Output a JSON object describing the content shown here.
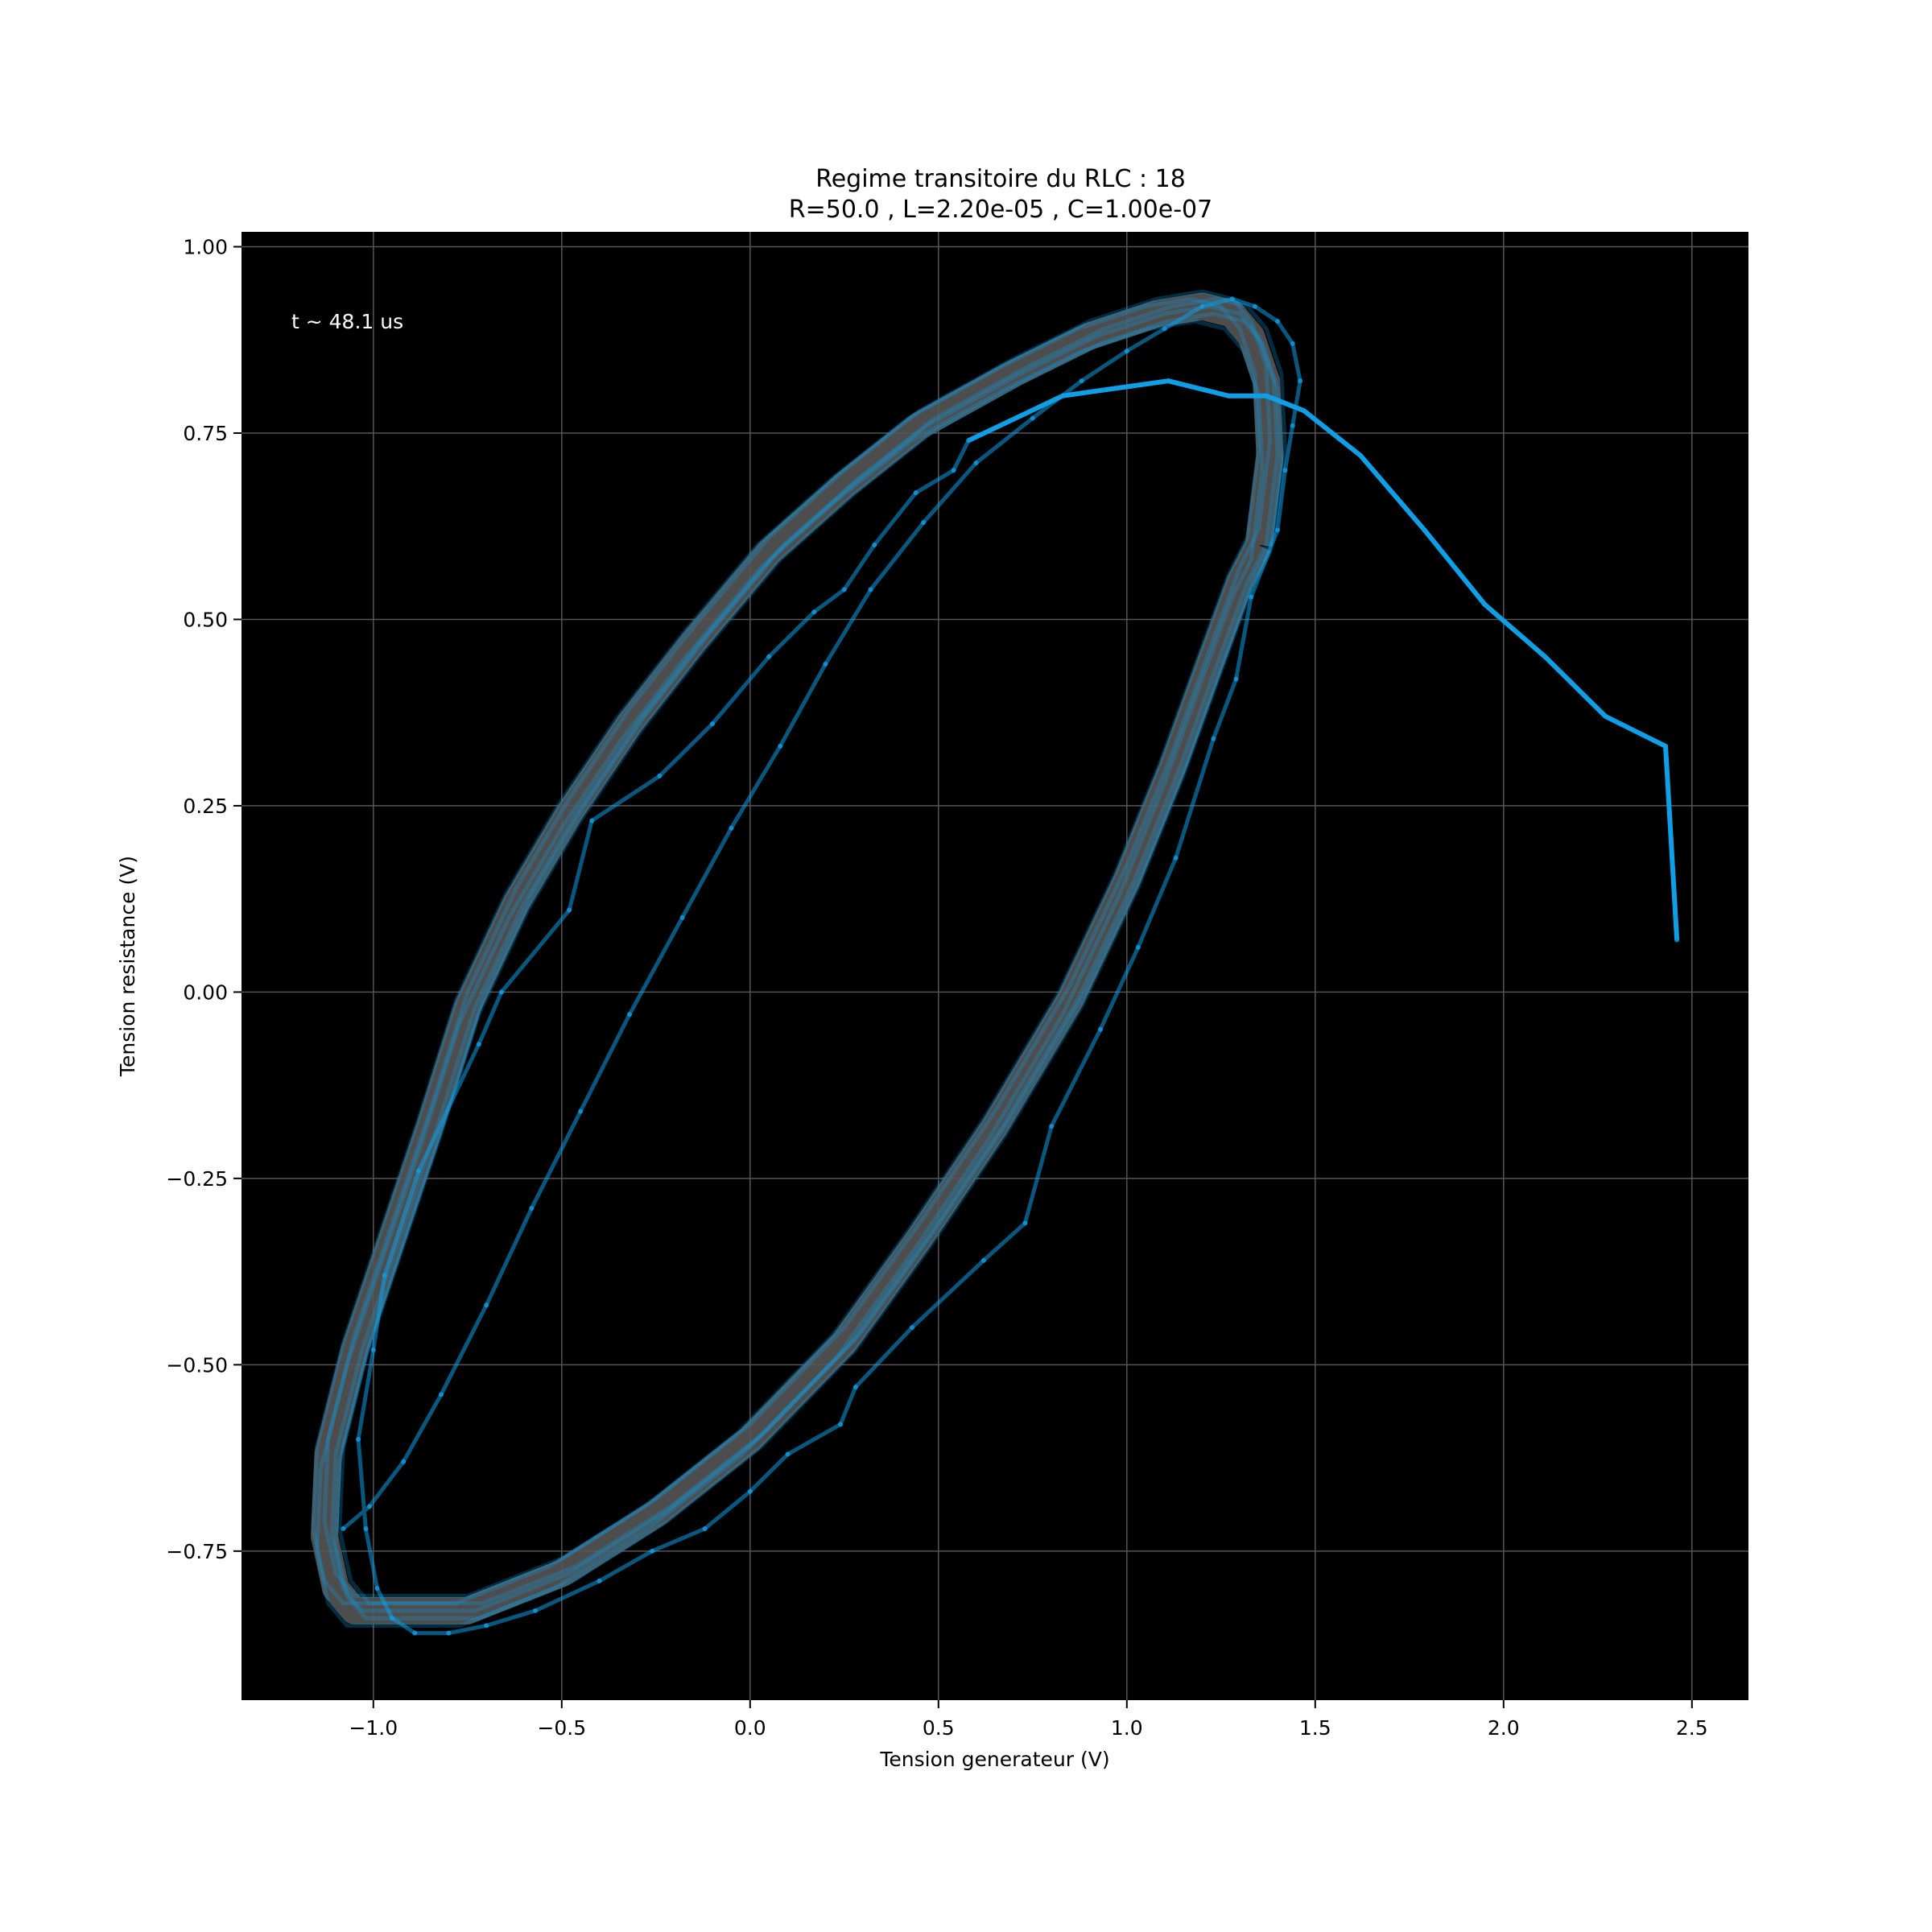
{
  "chart_data": {
    "type": "line",
    "title": "Regime transitoire du RLC : 18",
    "subtitle": "R=50.0 ,  L=2.20e-05 ,  C=1.00e-07",
    "xlabel": "Tension generateur (V)",
    "ylabel": "Tension resistance (V)",
    "annotation": "t ~ 48.1 us",
    "xlim": [
      -1.35,
      2.65
    ],
    "ylim": [
      -0.95,
      1.02
    ],
    "xticks": [
      -1.0,
      -0.5,
      0.0,
      0.5,
      1.0,
      1.5,
      2.0,
      2.5
    ],
    "xtick_labels": [
      "−1.0",
      "−0.5",
      "0.0",
      "0.5",
      "1.0",
      "1.5",
      "2.0",
      "2.5"
    ],
    "yticks": [
      -0.75,
      -0.5,
      -0.25,
      0.0,
      0.25,
      0.5,
      0.75,
      1.0
    ],
    "ytick_labels": [
      "−0.75",
      "−0.50",
      "−0.25",
      "0.00",
      "0.25",
      "0.50",
      "0.75",
      "1.00"
    ],
    "grid": true,
    "colors": {
      "background": "#000000",
      "grid": "#555555",
      "steady_state": "#555555",
      "trajectory": "#0f9fe6"
    },
    "steady_state_loop": {
      "x": [
        1.35,
        1.38,
        1.37,
        1.33,
        1.28,
        1.2,
        1.08,
        0.9,
        0.7,
        0.45,
        0.25,
        0.05,
        -0.15,
        -0.32,
        -0.48,
        -0.62,
        -0.75,
        -0.85,
        -0.95,
        -1.05,
        -1.12,
        -1.13,
        -1.1,
        -1.05,
        -0.95,
        -0.75,
        -0.5,
        -0.25,
        0.0,
        0.25,
        0.45,
        0.65,
        0.85,
        1.0,
        1.12,
        1.22,
        1.3,
        1.35
      ],
      "y": [
        0.6,
        0.72,
        0.82,
        0.88,
        0.91,
        0.92,
        0.91,
        0.88,
        0.83,
        0.76,
        0.68,
        0.59,
        0.47,
        0.36,
        0.24,
        0.12,
        -0.02,
        -0.18,
        -0.33,
        -0.48,
        -0.62,
        -0.73,
        -0.8,
        -0.83,
        -0.83,
        -0.83,
        -0.78,
        -0.7,
        -0.6,
        -0.47,
        -0.33,
        -0.18,
        -0.01,
        0.15,
        0.3,
        0.44,
        0.55,
        0.6
      ]
    },
    "series": [
      {
        "x": [
          2.46,
          2.43,
          2.27,
          2.11,
          1.95,
          1.79,
          1.62,
          1.47,
          1.37,
          1.27,
          1.11,
          0.97,
          0.83,
          0.58,
          0.54,
          0.44,
          0.33,
          0.25,
          0.17,
          0.05,
          -0.1,
          -0.24,
          -0.42,
          -0.48,
          -0.66,
          -0.72,
          -0.88,
          -0.97,
          -1.0,
          -1.04,
          -1.02,
          -0.99,
          -0.95,
          -0.89,
          -0.8,
          -0.7,
          -0.57,
          -0.4,
          -0.26,
          -0.12,
          0.0,
          0.1,
          0.24,
          0.28,
          0.43,
          0.62,
          0.73,
          0.8,
          0.93,
          1.03,
          1.13,
          1.23,
          1.29,
          1.33,
          1.4,
          1.42,
          1.44,
          1.46,
          1.44,
          1.4,
          1.34,
          1.28,
          1.2,
          1.1,
          1.0,
          0.88,
          0.75,
          0.6,
          0.46,
          0.32,
          0.2,
          0.08,
          -0.05,
          -0.18,
          -0.32,
          -0.45,
          -0.58,
          -0.7,
          -0.82,
          -0.92,
          -1.01,
          -1.08
        ],
        "y": [
          0.07,
          0.33,
          0.37,
          0.45,
          0.52,
          0.62,
          0.72,
          0.78,
          0.8,
          0.8,
          0.82,
          0.81,
          0.8,
          0.74,
          0.7,
          0.67,
          0.6,
          0.54,
          0.51,
          0.45,
          0.36,
          0.29,
          0.23,
          0.11,
          0.0,
          -0.07,
          -0.24,
          -0.38,
          -0.48,
          -0.6,
          -0.72,
          -0.8,
          -0.84,
          -0.86,
          -0.86,
          -0.85,
          -0.83,
          -0.79,
          -0.75,
          -0.72,
          -0.67,
          -0.62,
          -0.58,
          -0.53,
          -0.45,
          -0.36,
          -0.31,
          -0.18,
          -0.05,
          0.06,
          0.18,
          0.34,
          0.42,
          0.53,
          0.62,
          0.7,
          0.76,
          0.82,
          0.87,
          0.9,
          0.92,
          0.93,
          0.92,
          0.89,
          0.86,
          0.82,
          0.77,
          0.71,
          0.63,
          0.54,
          0.44,
          0.33,
          0.22,
          0.1,
          -0.03,
          -0.16,
          -0.29,
          -0.42,
          -0.54,
          -0.63,
          -0.69,
          -0.72
        ]
      }
    ]
  }
}
